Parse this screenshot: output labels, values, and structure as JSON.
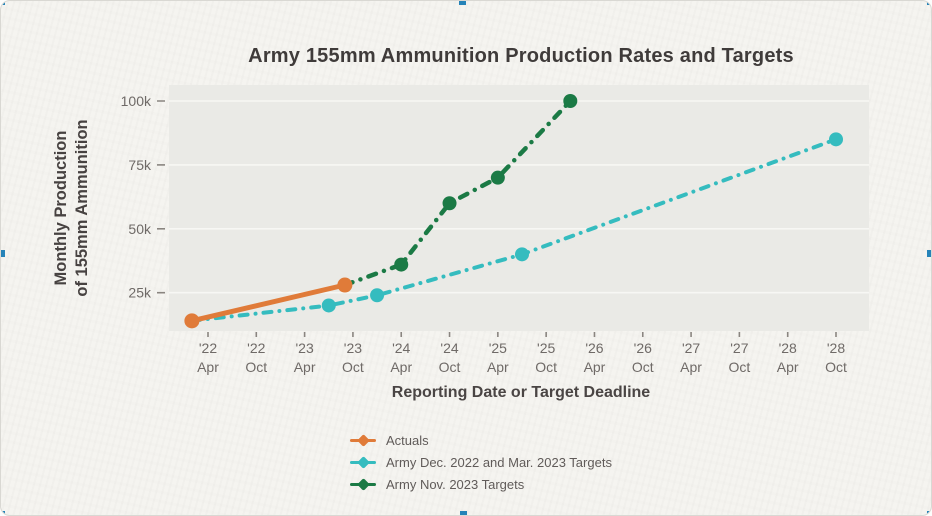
{
  "page": {
    "background_color": "#f5f4f0",
    "selection_handle_color": "#2583b8",
    "plot_panel_color": "#eaeae6",
    "gridline_color": "#f7f7f4"
  },
  "chart_data": {
    "type": "line",
    "title": "Army 155mm Ammunition Production Rates and Targets",
    "xlabel": "Reporting Date or Target Deadline",
    "ylabel_line1": "Monthly Production",
    "ylabel_line2": "of 155mm Ammunition",
    "grid": true,
    "legend_position": "bottom-left",
    "y_axis": {
      "units": "rounds per month",
      "min_visible": 10000,
      "max_visible": 107800
    },
    "y_ticks": [
      {
        "label": "25k",
        "value": 25000
      },
      {
        "label": "50k",
        "value": 50000
      },
      {
        "label": "75k",
        "value": 75000
      },
      {
        "label": "100k",
        "value": 100000
      }
    ],
    "x_ticks": [
      {
        "year": "'22",
        "month": "Apr",
        "month_index": 3
      },
      {
        "year": "'22",
        "month": "Oct",
        "month_index": 9
      },
      {
        "year": "'23",
        "month": "Apr",
        "month_index": 15
      },
      {
        "year": "'23",
        "month": "Oct",
        "month_index": 21
      },
      {
        "year": "'24",
        "month": "Apr",
        "month_index": 27
      },
      {
        "year": "'24",
        "month": "Oct",
        "month_index": 33
      },
      {
        "year": "'25",
        "month": "Apr",
        "month_index": 39
      },
      {
        "year": "'25",
        "month": "Oct",
        "month_index": 45
      },
      {
        "year": "'26",
        "month": "Apr",
        "month_index": 51
      },
      {
        "year": "'26",
        "month": "Oct",
        "month_index": 57
      },
      {
        "year": "'27",
        "month": "Apr",
        "month_index": 63
      },
      {
        "year": "'27",
        "month": "Oct",
        "month_index": 69
      },
      {
        "year": "'28",
        "month": "Apr",
        "month_index": 75
      },
      {
        "year": "'28",
        "month": "Oct",
        "month_index": 81
      }
    ],
    "series": [
      {
        "name": "Army Dec. 2022 and Mar. 2023 Targets",
        "color": "#35bcbf",
        "line_style": "dash-dot",
        "line_width": 4,
        "points": [
          {
            "date": "Feb 2022",
            "month_index": 1,
            "value": 14000
          },
          {
            "date": "Jul 2023",
            "month_index": 18,
            "value": 20000
          },
          {
            "date": "Jan 2024",
            "month_index": 24,
            "value": 24000
          },
          {
            "date": "Jul 2025",
            "month_index": 42,
            "value": 40000
          },
          {
            "date": "Oct 2028",
            "month_index": 81,
            "value": 85000
          }
        ]
      },
      {
        "name": "Army Nov. 2023 Targets",
        "color": "#1b7a45",
        "line_style": "dash-dot",
        "line_width": 4.5,
        "points": [
          {
            "date": "Sep 2023",
            "month_index": 20,
            "value": 28000
          },
          {
            "date": "Apr 2024",
            "month_index": 27,
            "value": 36000
          },
          {
            "date": "Oct 2024",
            "month_index": 33,
            "value": 60000
          },
          {
            "date": "Apr 2025",
            "month_index": 39,
            "value": 70000
          },
          {
            "date": "Jan 2026",
            "month_index": 48,
            "value": 100000
          }
        ]
      },
      {
        "name": "Actuals",
        "color": "#e07b39",
        "line_style": "solid",
        "line_width": 5,
        "points": [
          {
            "date": "Feb 2022",
            "month_index": 1,
            "value": 14000
          },
          {
            "date": "Sep 2023",
            "month_index": 20,
            "value": 28000
          }
        ]
      }
    ],
    "legend_order": [
      2,
      0,
      1
    ]
  }
}
